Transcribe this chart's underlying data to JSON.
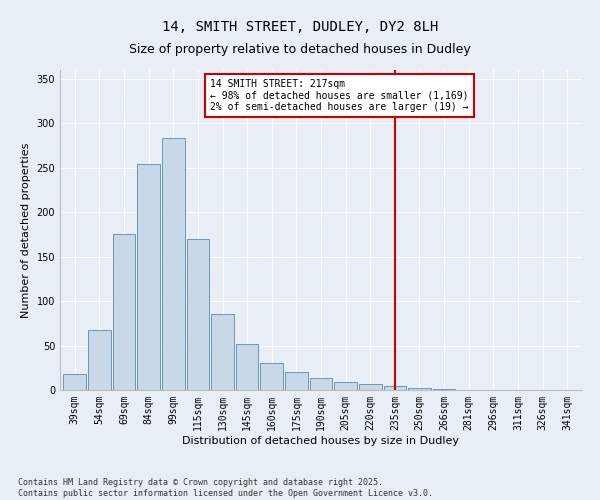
{
  "title1": "14, SMITH STREET, DUDLEY, DY2 8LH",
  "title2": "Size of property relative to detached houses in Dudley",
  "xlabel": "Distribution of detached houses by size in Dudley",
  "ylabel": "Number of detached properties",
  "bar_labels": [
    "39sqm",
    "54sqm",
    "69sqm",
    "84sqm",
    "99sqm",
    "115sqm",
    "130sqm",
    "145sqm",
    "160sqm",
    "175sqm",
    "190sqm",
    "205sqm",
    "220sqm",
    "235sqm",
    "250sqm",
    "266sqm",
    "281sqm",
    "296sqm",
    "311sqm",
    "326sqm",
    "341sqm"
  ],
  "bar_values": [
    18,
    67,
    175,
    254,
    284,
    170,
    85,
    52,
    30,
    20,
    13,
    9,
    7,
    5,
    2,
    1,
    0,
    0,
    0,
    0,
    0
  ],
  "bar_color": "#c8d8e8",
  "bar_edge_color": "#5a8ab0",
  "vline_x_index": 13,
  "vline_color": "#cc0000",
  "annotation_line1": "14 SMITH STREET: 217sqm",
  "annotation_line2": "← 98% of detached houses are smaller (1,169)",
  "annotation_line3": "2% of semi-detached houses are larger (19) →",
  "annotation_box_color": "#cc0000",
  "annotation_bg": "#ffffff",
  "ylim": [
    0,
    360
  ],
  "yticks": [
    0,
    50,
    100,
    150,
    200,
    250,
    300,
    350
  ],
  "footer": "Contains HM Land Registry data © Crown copyright and database right 2025.\nContains public sector information licensed under the Open Government Licence v3.0.",
  "bg_color": "#e8eef5",
  "grid_color": "#ffffff",
  "title_fontsize": 10,
  "subtitle_fontsize": 9,
  "axis_label_fontsize": 8,
  "tick_fontsize": 7,
  "annotation_fontsize": 7,
  "footer_fontsize": 6
}
